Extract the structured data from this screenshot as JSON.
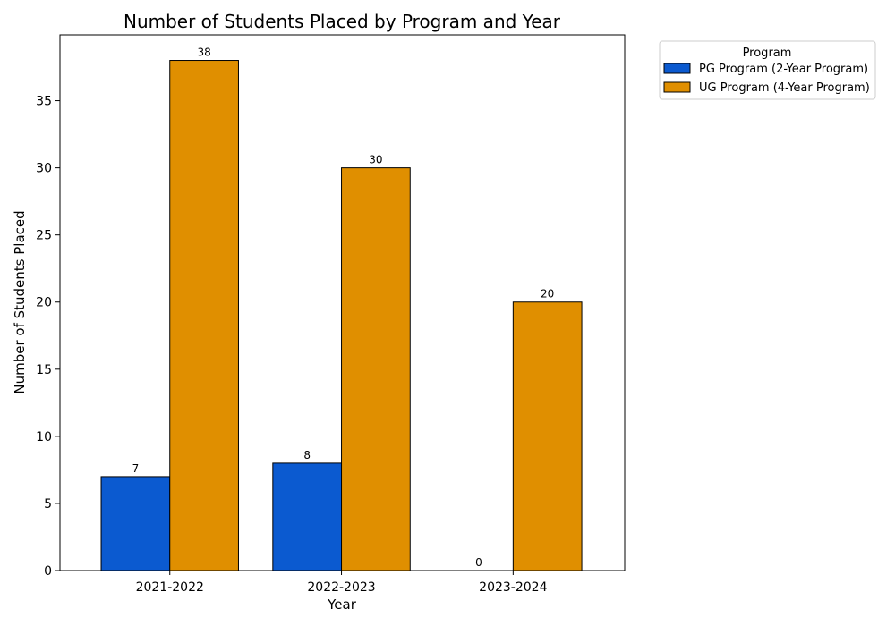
{
  "chart_data": {
    "type": "bar",
    "title": "Number of Students Placed by Program and Year",
    "xlabel": "Year",
    "ylabel": "Number of Students Placed",
    "categories": [
      "2021-2022",
      "2022-2023",
      "2023-2024"
    ],
    "series": [
      {
        "name": "PG Program (2-Year Program)",
        "values": [
          7,
          8,
          0
        ],
        "color": "#0b5ad0"
      },
      {
        "name": "UG Program (4-Year Program)",
        "values": [
          38,
          30,
          20
        ],
        "color": "#e08f00"
      }
    ],
    "data_labels": [
      [
        "7",
        "8",
        "0"
      ],
      [
        "38",
        "30",
        "20"
      ]
    ],
    "ylim": [
      0,
      39.9
    ],
    "yticks": [
      "0",
      "5",
      "10",
      "15",
      "20",
      "25",
      "30",
      "35"
    ],
    "grid": false,
    "legend": {
      "title": "Program",
      "placement": "outside-top-right"
    }
  }
}
